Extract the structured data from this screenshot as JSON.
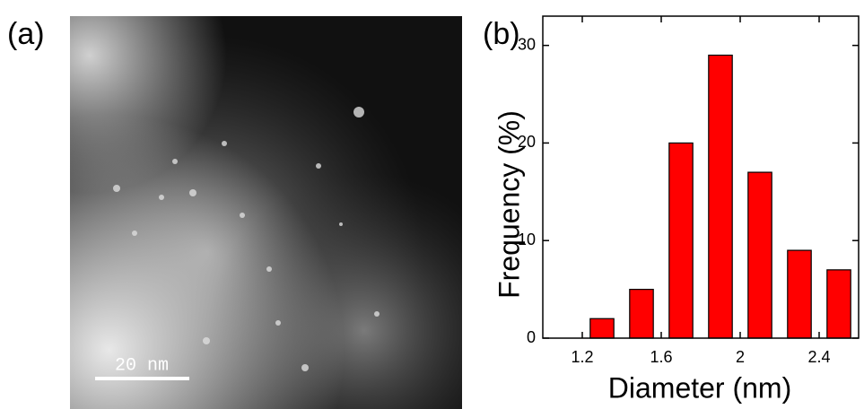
{
  "image": {
    "label": "(a)",
    "scale_bar": "20 nm"
  },
  "chart_data": {
    "type": "bar",
    "label": "(b)",
    "x_label": "Diameter (nm)",
    "y_label": "Frequency (%)",
    "x": [
      1.3,
      1.5,
      1.7,
      1.9,
      2.1,
      2.3,
      2.5
    ],
    "values": [
      2,
      5,
      20,
      29,
      17,
      9,
      7
    ],
    "color": "#ff0000",
    "xlim": [
      1.0,
      2.6
    ],
    "xticks": [
      1.2,
      1.6,
      2.0,
      2.4
    ],
    "ylim": [
      0,
      33
    ],
    "yticks": [
      0,
      10,
      20,
      30
    ]
  }
}
